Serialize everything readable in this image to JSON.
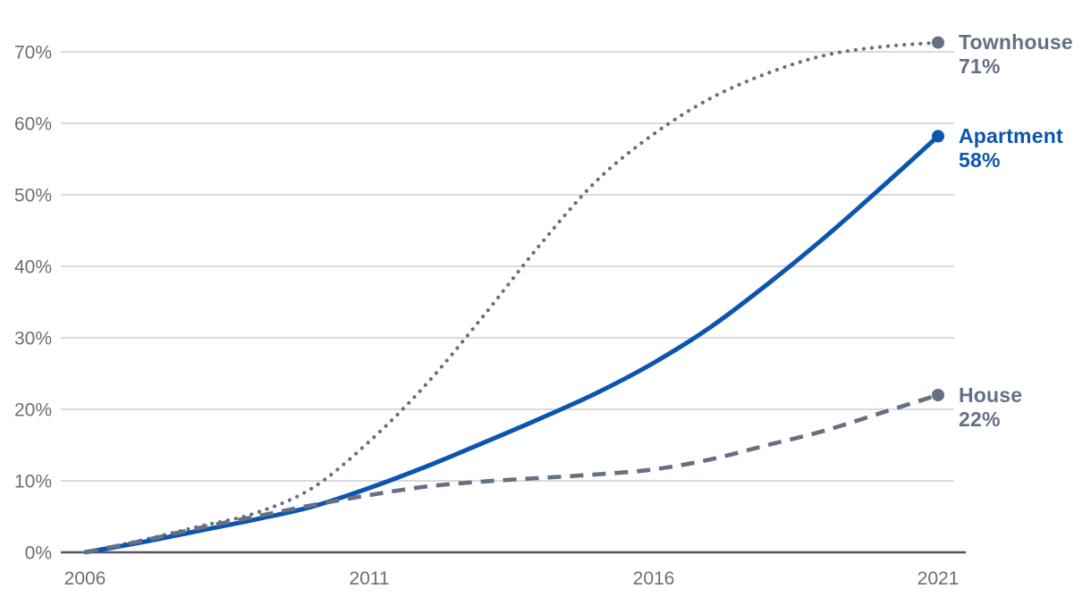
{
  "chart_data": {
    "type": "line",
    "title": "",
    "x": [
      2006,
      2007,
      2008,
      2009,
      2010,
      2011,
      2012,
      2013,
      2014,
      2015,
      2016,
      2017,
      2018,
      2019,
      2020,
      2021
    ],
    "x_tick_labels": [
      "2006",
      "2011",
      "2016",
      "2021"
    ],
    "x_tick_years": [
      2006,
      2011,
      2016,
      2021
    ],
    "y_tick_labels": [
      "0%",
      "10%",
      "20%",
      "30%",
      "40%",
      "50%",
      "60%",
      "70%"
    ],
    "y_tick_values": [
      0,
      10,
      20,
      30,
      40,
      50,
      60,
      70
    ],
    "ylim": [
      0,
      72
    ],
    "grid": "horizontal",
    "legend_position": "line-end-labels-right",
    "series": [
      {
        "name": "Townhouse",
        "line_style": "dotted",
        "color": "#647083",
        "end_label": "Townhouse",
        "end_value": "71%",
        "values": [
          0,
          1.7,
          3.6,
          5.5,
          9,
          15.5,
          23.5,
          33,
          43,
          52,
          58.5,
          63.5,
          67,
          69.5,
          70.7,
          71.3
        ]
      },
      {
        "name": "Apartment",
        "line_style": "solid",
        "color": "#0b55b0",
        "end_label": "Apartment",
        "end_value": "58%",
        "values": [
          0,
          1.4,
          3,
          4.6,
          6.4,
          9,
          12,
          15.3,
          18.7,
          22.3,
          26.5,
          31.5,
          37.5,
          44,
          51,
          58.2
        ]
      },
      {
        "name": "House",
        "line_style": "dashed",
        "color": "#647083",
        "end_label": "House",
        "end_value": "22%",
        "values": [
          0,
          1.6,
          3.4,
          5,
          6.6,
          8,
          9.2,
          9.9,
          10.4,
          10.9,
          11.6,
          13,
          15,
          17,
          19.5,
          22
        ]
      }
    ]
  },
  "colors": {
    "background": "#ffffff",
    "gridline": "#dadbdc",
    "axis_line": "#55565a",
    "axis_label": "#6e6f72",
    "accent_blue": "#0b55b0",
    "slate_gray": "#647083"
  }
}
